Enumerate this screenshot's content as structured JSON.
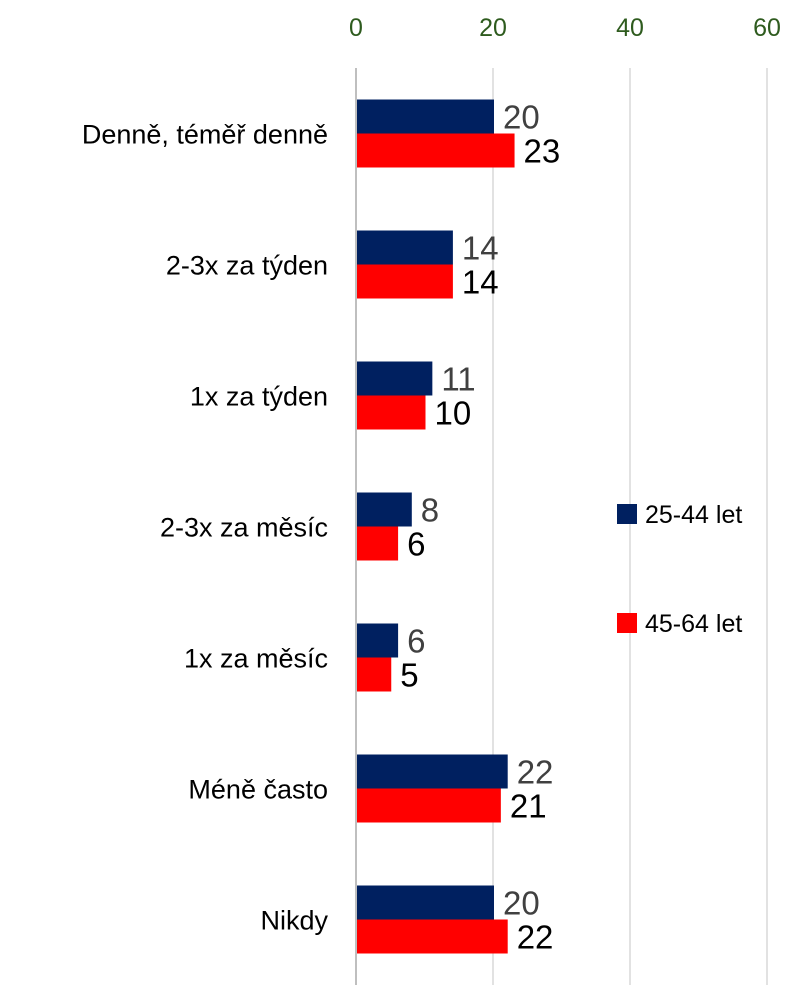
{
  "chart_data": {
    "type": "bar",
    "orientation": "horizontal",
    "categories": [
      "Denně, téměř denně",
      "2-3x za týden",
      "1x za týden",
      "2-3x za měsíc",
      "1x za měsíc",
      "Méně často",
      "Nikdy"
    ],
    "series": [
      {
        "name": "25-44 let",
        "color": "#002060",
        "values": [
          20,
          14,
          11,
          8,
          6,
          22,
          20
        ]
      },
      {
        "name": "45-64 let",
        "color": "#FF0000",
        "values": [
          23,
          14,
          10,
          6,
          5,
          21,
          22
        ]
      }
    ],
    "xlim": [
      0,
      60
    ],
    "xticks": [
      "0",
      "20",
      "40",
      "60"
    ],
    "axis_position": "top",
    "grid": true,
    "legend_position": "right"
  }
}
